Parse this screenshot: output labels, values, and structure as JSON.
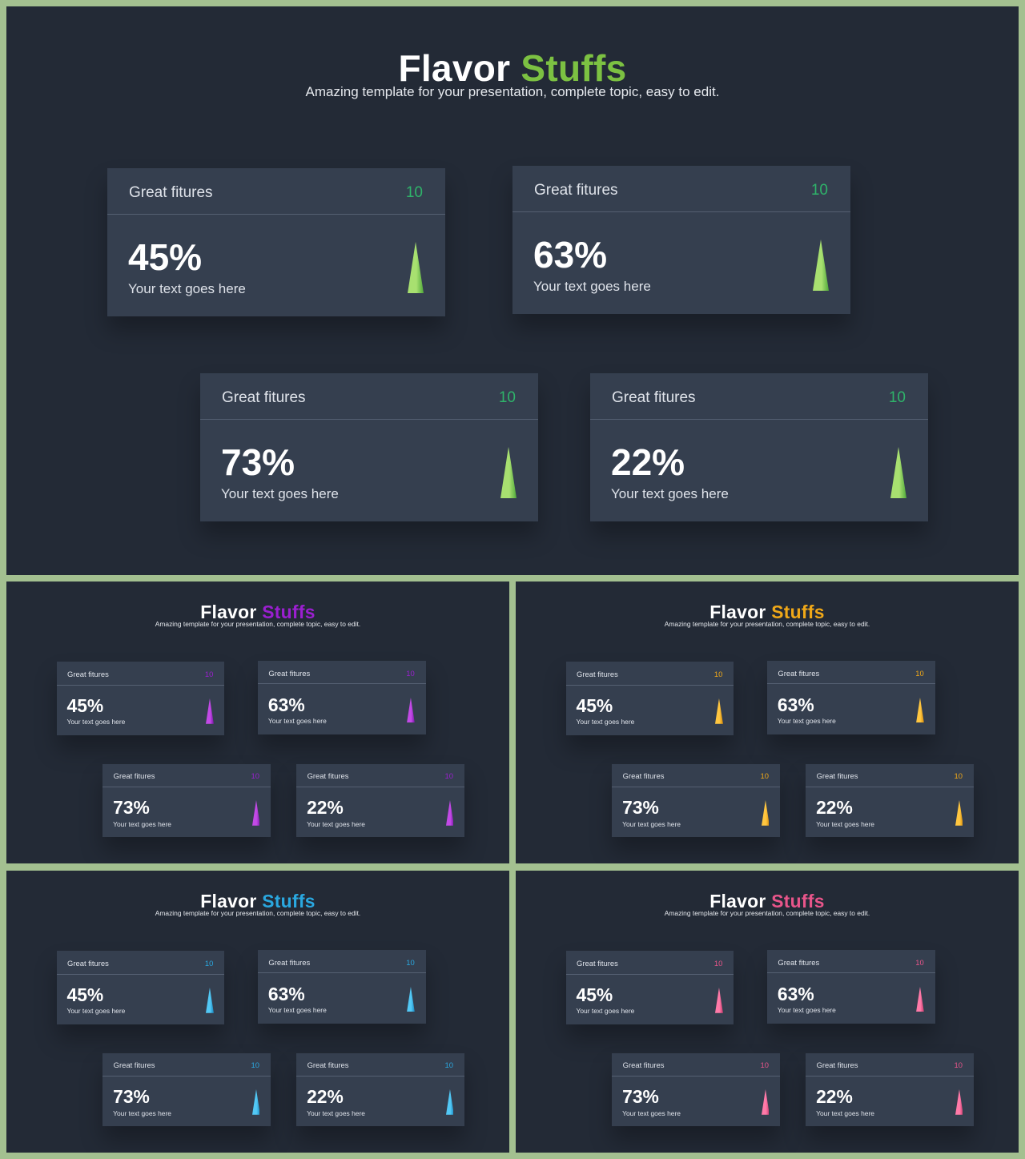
{
  "slides": [
    {
      "title_main": "Flavor",
      "title_accent": "Stuffs",
      "subtitle": "Amazing template for your presentation, complete topic, easy to edit.",
      "accent": "#7cc142",
      "count_color": "#2fb36a",
      "cone_light": "#a8e070",
      "cone_dark": "#4fa83a",
      "cards": [
        {
          "label": "Great fitures",
          "count": "10",
          "percent": "45%",
          "text": "Your text goes here",
          "icon": "cone-icon"
        },
        {
          "label": "Great fitures",
          "count": "10",
          "percent": "63%",
          "text": "Your text goes here",
          "icon": "cone-icon"
        },
        {
          "label": "Great fitures",
          "count": "10",
          "percent": "73%",
          "text": "Your text goes here",
          "icon": "cone-icon"
        },
        {
          "label": "Great fitures",
          "count": "10",
          "percent": "22%",
          "text": "Your text goes here",
          "icon": "cone-icon"
        }
      ]
    },
    {
      "title_main": "Flavor",
      "title_accent": "Stuffs",
      "subtitle": "Amazing template for your presentation, complete topic, easy to edit.",
      "accent": "#9b1fd0",
      "count_color": "#9b1fd0",
      "cone_light": "#c24ae6",
      "cone_dark": "#7a14a8",
      "cards": [
        {
          "label": "Great fitures",
          "count": "10",
          "percent": "45%",
          "text": "Your text goes here",
          "icon": "cone-icon"
        },
        {
          "label": "Great fitures",
          "count": "10",
          "percent": "63%",
          "text": "Your text goes here",
          "icon": "cone-icon"
        },
        {
          "label": "Great fitures",
          "count": "10",
          "percent": "73%",
          "text": "Your text goes here",
          "icon": "cone-icon"
        },
        {
          "label": "Great fitures",
          "count": "10",
          "percent": "22%",
          "text": "Your text goes here",
          "icon": "cone-icon"
        }
      ]
    },
    {
      "title_main": "Flavor",
      "title_accent": "Stuffs",
      "subtitle": "Amazing template for your presentation, complete topic, easy to edit.",
      "accent": "#f0a818",
      "count_color": "#f0a818",
      "cone_light": "#ffc640",
      "cone_dark": "#d68a08",
      "cards": [
        {
          "label": "Great fitures",
          "count": "10",
          "percent": "45%",
          "text": "Your text goes here",
          "icon": "cone-icon"
        },
        {
          "label": "Great fitures",
          "count": "10",
          "percent": "63%",
          "text": "Your text goes here",
          "icon": "cone-icon"
        },
        {
          "label": "Great fitures",
          "count": "10",
          "percent": "73%",
          "text": "Your text goes here",
          "icon": "cone-icon"
        },
        {
          "label": "Great fitures",
          "count": "10",
          "percent": "22%",
          "text": "Your text goes here",
          "icon": "cone-icon"
        }
      ]
    },
    {
      "title_main": "Flavor",
      "title_accent": "Stuffs",
      "subtitle": "Amazing template for your presentation, complete topic, easy to edit.",
      "accent": "#2aa8e0",
      "count_color": "#2aa8e0",
      "cone_light": "#52c8f5",
      "cone_dark": "#1888c0",
      "cards": [
        {
          "label": "Great fitures",
          "count": "10",
          "percent": "45%",
          "text": "Your text goes here",
          "icon": "cone-icon"
        },
        {
          "label": "Great fitures",
          "count": "10",
          "percent": "63%",
          "text": "Your text goes here",
          "icon": "cone-icon"
        },
        {
          "label": "Great fitures",
          "count": "10",
          "percent": "73%",
          "text": "Your text goes here",
          "icon": "cone-icon"
        },
        {
          "label": "Great fitures",
          "count": "10",
          "percent": "22%",
          "text": "Your text goes here",
          "icon": "cone-icon"
        }
      ]
    },
    {
      "title_main": "Flavor",
      "title_accent": "Stuffs",
      "subtitle": "Amazing template for your presentation, complete topic, easy to edit.",
      "accent": "#e8558a",
      "count_color": "#e8558a",
      "cone_light": "#ff7aa8",
      "cone_dark": "#c8386c",
      "cards": [
        {
          "label": "Great fitures",
          "count": "10",
          "percent": "45%",
          "text": "Your text goes here",
          "icon": "cone-icon"
        },
        {
          "label": "Great fitures",
          "count": "10",
          "percent": "63%",
          "text": "Your text goes here",
          "icon": "cone-icon"
        },
        {
          "label": "Great fitures",
          "count": "10",
          "percent": "73%",
          "text": "Your text goes here",
          "icon": "cone-icon"
        },
        {
          "label": "Great fitures",
          "count": "10",
          "percent": "22%",
          "text": "Your text goes here",
          "icon": "cone-icon"
        }
      ]
    }
  ]
}
